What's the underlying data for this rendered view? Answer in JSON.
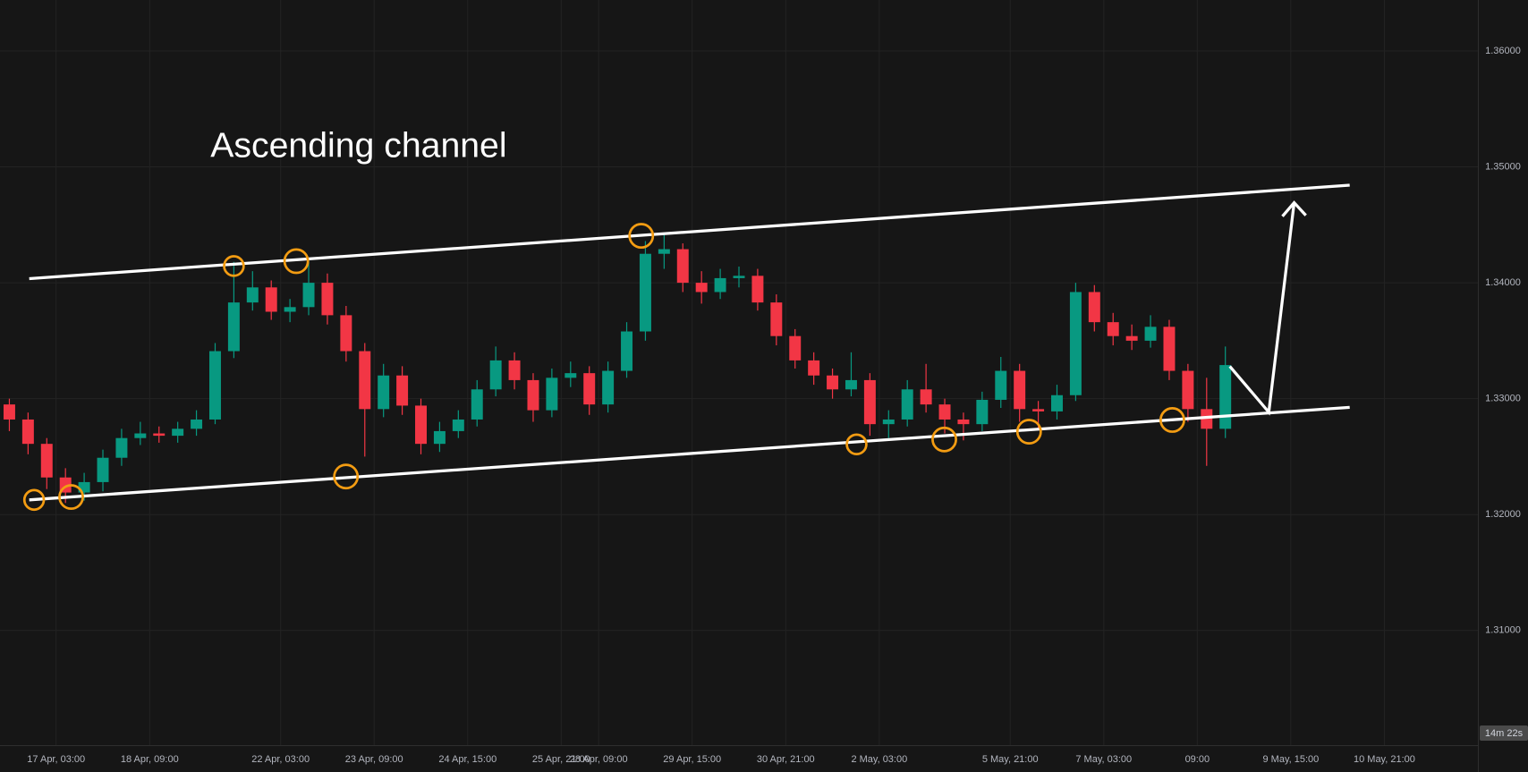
{
  "chart_data": {
    "type": "candlestick",
    "annotation": "Ascending channel",
    "countdown": "14m 22s",
    "up_color": "#089981",
    "down_color": "#f23645",
    "grid": true,
    "open": [
      1.3295,
      1.3282,
      1.3261,
      1.3232,
      1.3219,
      1.3228,
      1.3249,
      1.3266,
      1.327,
      1.3268,
      1.3274,
      1.3282,
      1.3341,
      1.3383,
      1.3396,
      1.3375,
      1.3379,
      1.34,
      1.3372,
      1.3341,
      1.3291,
      1.332,
      1.3294,
      1.3261,
      1.3272,
      1.3282,
      1.3308,
      1.3333,
      1.3316,
      1.329,
      1.3318,
      1.3322,
      1.3295,
      1.3324,
      1.3358,
      1.3425,
      1.3429,
      1.34,
      1.3392,
      1.3404,
      1.3406,
      1.3383,
      1.3354,
      1.3333,
      1.332,
      1.3308,
      1.3316,
      1.3278,
      1.3282,
      1.3308,
      1.3295,
      1.3282,
      1.3278,
      1.3299,
      1.3324,
      1.3291,
      1.3289,
      1.3303,
      1.3392,
      1.3366,
      1.3354,
      1.335,
      1.3362,
      1.3324,
      1.3291,
      1.3274
    ],
    "high": [
      1.33,
      1.3288,
      1.3266,
      1.324,
      1.3236,
      1.3256,
      1.3274,
      1.328,
      1.3276,
      1.328,
      1.329,
      1.3348,
      1.3418,
      1.341,
      1.3402,
      1.3386,
      1.342,
      1.3408,
      1.338,
      1.3348,
      1.333,
      1.3328,
      1.33,
      1.328,
      1.329,
      1.3316,
      1.3345,
      1.334,
      1.3322,
      1.3326,
      1.3332,
      1.3328,
      1.3332,
      1.3366,
      1.3436,
      1.3442,
      1.3434,
      1.341,
      1.3412,
      1.3414,
      1.3412,
      1.339,
      1.336,
      1.334,
      1.3326,
      1.334,
      1.3322,
      1.329,
      1.3316,
      1.333,
      1.33,
      1.3288,
      1.3306,
      1.3336,
      1.333,
      1.3298,
      1.3312,
      1.34,
      1.3398,
      1.3374,
      1.3364,
      1.3372,
      1.3368,
      1.333,
      1.3318,
      1.3345
    ],
    "low": [
      1.3272,
      1.3252,
      1.3222,
      1.321,
      1.3212,
      1.322,
      1.3242,
      1.326,
      1.3262,
      1.3262,
      1.3268,
      1.3278,
      1.3335,
      1.3376,
      1.3368,
      1.3366,
      1.3372,
      1.3364,
      1.3332,
      1.325,
      1.3284,
      1.3286,
      1.3252,
      1.3254,
      1.3266,
      1.3276,
      1.3302,
      1.3308,
      1.328,
      1.3284,
      1.331,
      1.3286,
      1.3288,
      1.3318,
      1.335,
      1.3412,
      1.3392,
      1.3382,
      1.3386,
      1.3396,
      1.3376,
      1.3346,
      1.3326,
      1.3312,
      1.33,
      1.3302,
      1.3268,
      1.3266,
      1.3276,
      1.3288,
      1.327,
      1.3264,
      1.3272,
      1.3292,
      1.328,
      1.3274,
      1.3282,
      1.3298,
      1.3358,
      1.3346,
      1.3342,
      1.3344,
      1.3316,
      1.328,
      1.3242,
      1.3266
    ],
    "close": [
      1.3282,
      1.3261,
      1.3232,
      1.3219,
      1.3228,
      1.3249,
      1.3266,
      1.327,
      1.3268,
      1.3274,
      1.3282,
      1.3341,
      1.3383,
      1.3396,
      1.3375,
      1.3379,
      1.34,
      1.3372,
      1.3341,
      1.3291,
      1.332,
      1.3294,
      1.3261,
      1.3272,
      1.3282,
      1.3308,
      1.3333,
      1.3316,
      1.329,
      1.3318,
      1.3322,
      1.3295,
      1.3324,
      1.3358,
      1.3425,
      1.3429,
      1.34,
      1.3392,
      1.3404,
      1.3406,
      1.3383,
      1.3354,
      1.3333,
      1.332,
      1.3308,
      1.3316,
      1.3278,
      1.3282,
      1.3308,
      1.3295,
      1.3282,
      1.3278,
      1.3299,
      1.3324,
      1.3291,
      1.3289,
      1.3303,
      1.3392,
      1.3366,
      1.3354,
      1.335,
      1.3362,
      1.3324,
      1.3291,
      1.3274,
      1.3329
    ],
    "xlim": [
      0,
      79
    ],
    "xticks": [
      {
        "value": 3,
        "label": "17 Apr, 03:00"
      },
      {
        "value": 8,
        "label": "18 Apr, 09:00"
      },
      {
        "value": 15,
        "label": "22 Apr, 03:00"
      },
      {
        "value": 20,
        "label": "23 Apr, 09:00"
      },
      {
        "value": 25,
        "label": "24 Apr, 15:00"
      },
      {
        "value": 30,
        "label": "25 Apr, 21:00"
      },
      {
        "value": 32,
        "label": "28 Apr, 09:00"
      },
      {
        "value": 37,
        "label": "29 Apr, 15:00"
      },
      {
        "value": 42,
        "label": "30 Apr, 21:00"
      },
      {
        "value": 47,
        "label": "2 May, 03:00"
      },
      {
        "value": 54,
        "label": "5 May, 21:00"
      },
      {
        "value": 59,
        "label": "7 May, 03:00"
      },
      {
        "value": 64,
        "label": "09:00"
      },
      {
        "value": 69,
        "label": "9 May, 15:00"
      },
      {
        "value": 74,
        "label": "10 May, 21:00"
      }
    ],
    "ylim": [
      1.3001,
      1.3644
    ],
    "yticks": [
      {
        "value": 1.31,
        "label": "1.31000"
      },
      {
        "value": 1.32,
        "label": "1.32000"
      },
      {
        "value": 1.33,
        "label": "1.33000"
      },
      {
        "value": 1.34,
        "label": "1.34000"
      },
      {
        "value": 1.35,
        "label": "1.35000"
      },
      {
        "value": 1.36,
        "label": "1.36000"
      }
    ]
  }
}
